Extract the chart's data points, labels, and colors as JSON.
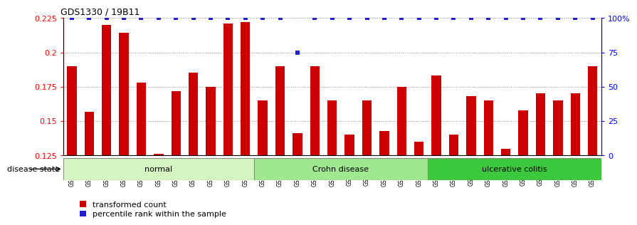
{
  "title": "GDS1330 / 19B11",
  "samples": [
    "GSM29595",
    "GSM29596",
    "GSM29597",
    "GSM29598",
    "GSM29599",
    "GSM29600",
    "GSM29601",
    "GSM29602",
    "GSM29603",
    "GSM29604",
    "GSM29605",
    "GSM29606",
    "GSM29607",
    "GSM29608",
    "GSM29609",
    "GSM29610",
    "GSM29611",
    "GSM29612",
    "GSM29613",
    "GSM29614",
    "GSM29615",
    "GSM29616",
    "GSM29617",
    "GSM29618",
    "GSM29619",
    "GSM29620",
    "GSM29621",
    "GSM29622",
    "GSM29623",
    "GSM29624",
    "GSM29625"
  ],
  "bar_values": [
    0.19,
    0.157,
    0.22,
    0.214,
    0.178,
    0.126,
    0.172,
    0.185,
    0.175,
    0.221,
    0.222,
    0.165,
    0.19,
    0.141,
    0.19,
    0.165,
    0.14,
    0.165,
    0.143,
    0.175,
    0.135,
    0.183,
    0.14,
    0.168,
    0.165,
    0.13,
    0.158,
    0.17,
    0.165,
    0.17,
    0.19
  ],
  "blue_values": [
    100,
    100,
    100,
    100,
    100,
    100,
    100,
    100,
    100,
    100,
    100,
    100,
    100,
    75,
    100,
    100,
    100,
    100,
    100,
    100,
    100,
    100,
    100,
    100,
    100,
    100,
    100,
    100,
    100,
    100,
    100
  ],
  "disease_groups": [
    {
      "label": "normal",
      "start": 0,
      "end": 11,
      "color": "#d4f5c0"
    },
    {
      "label": "Crohn disease",
      "start": 11,
      "end": 21,
      "color": "#a0e890"
    },
    {
      "label": "ulcerative colitis",
      "start": 21,
      "end": 31,
      "color": "#3cc83c"
    }
  ],
  "bar_color": "#cc0000",
  "blue_color": "#2222cc",
  "ylim_left": [
    0.125,
    0.225
  ],
  "ylim_right": [
    0,
    100
  ],
  "yticks_left": [
    0.125,
    0.15,
    0.175,
    0.2,
    0.225
  ],
  "ytick_labels_left": [
    "0.125",
    "0.15",
    "0.175",
    "0.2",
    "0.225"
  ],
  "yticks_right": [
    0,
    25,
    50,
    75,
    100
  ],
  "ytick_labels_right": [
    "0",
    "25",
    "50",
    "75",
    "100%"
  ],
  "grid_color": "#888888",
  "bar_width": 0.55,
  "legend_entries": [
    "transformed count",
    "percentile rank within the sample"
  ],
  "disease_state_label": "disease state"
}
